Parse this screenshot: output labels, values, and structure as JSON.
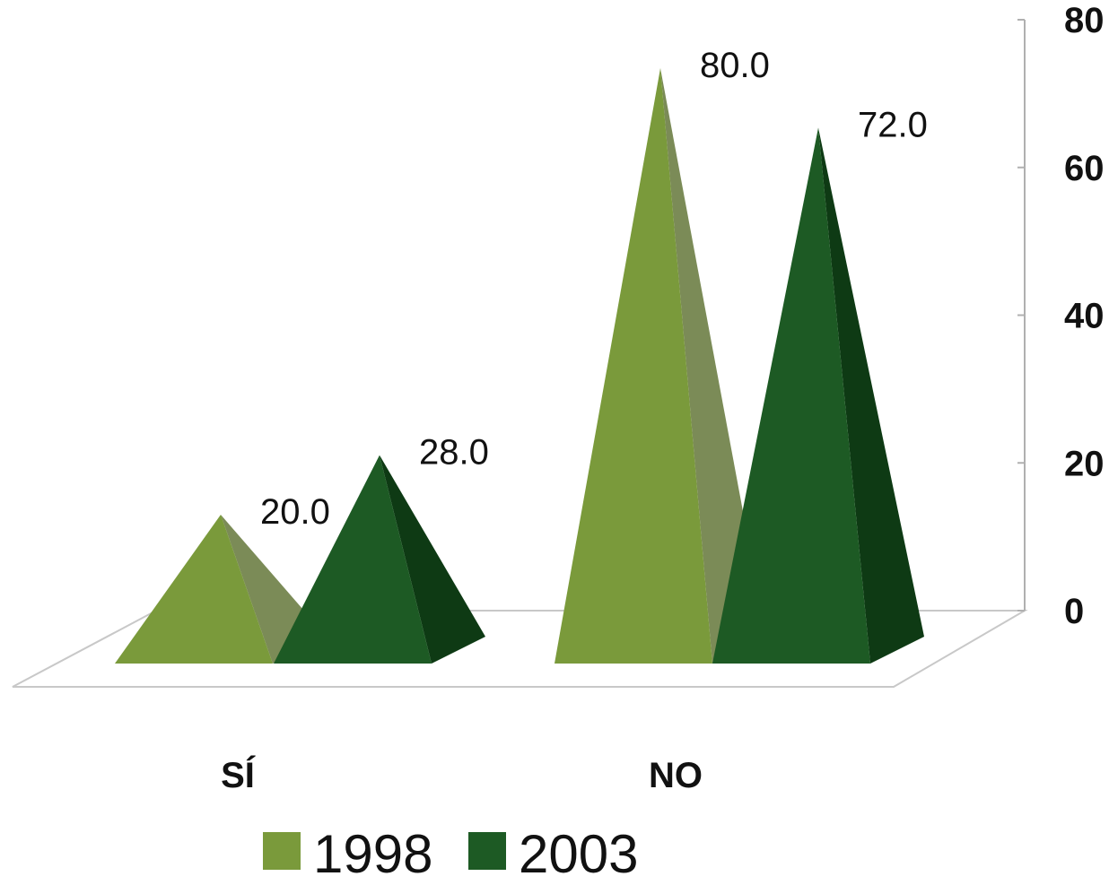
{
  "chart_data": {
    "type": "bar",
    "shape": "pyramid-3d",
    "categories": [
      "SÍ",
      "NO"
    ],
    "series": [
      {
        "name": "1998",
        "values": [
          20.0,
          80.0
        ],
        "color": "#7a9a3b",
        "side_color": "#7b8b57"
      },
      {
        "name": "2003",
        "values": [
          28.0,
          72.0
        ],
        "color": "#1d5a24",
        "side_color": "#0e3a14"
      }
    ],
    "data_labels": [
      [
        "20.0",
        "80.0"
      ],
      [
        "28.0",
        "72.0"
      ]
    ],
    "yticks": [
      "0",
      "20",
      "40",
      "60",
      "80"
    ],
    "ylim": [
      0,
      80
    ],
    "y_axis_side": "right",
    "legend": "bottom",
    "grid": false
  }
}
